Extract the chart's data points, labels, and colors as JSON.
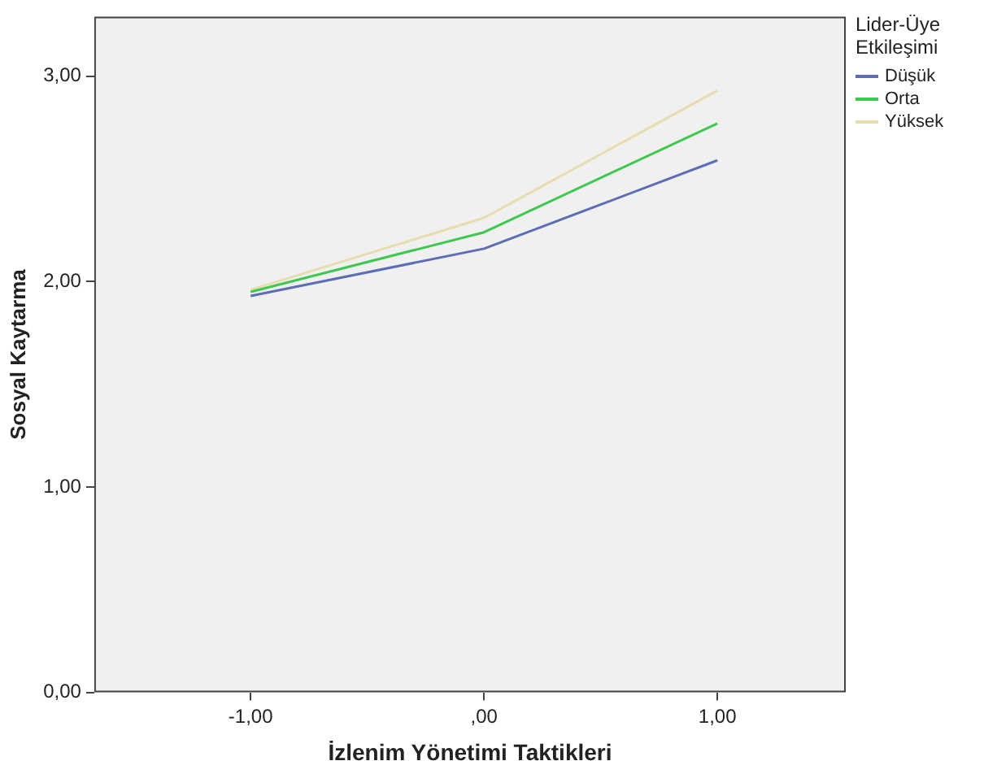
{
  "chart_data": {
    "type": "line",
    "xlabel": "İzlenim Yönetimi Taktikleri",
    "ylabel": "Sosyal Kaytarma",
    "legend_title": "Lider-Üye Etkileşimi",
    "legend": "top right",
    "grid": false,
    "marker": "none",
    "line_style": "solid",
    "x": [
      -1,
      0,
      1
    ],
    "xlim": [
      -1.67,
      1.55
    ],
    "xticks": [
      {
        "value": -1,
        "label": "-1,00"
      },
      {
        "value": 0,
        "label": ",00"
      },
      {
        "value": 1,
        "label": "1,00"
      }
    ],
    "ylim": [
      0,
      3.29
    ],
    "yticks": [
      {
        "value": 0,
        "label": "0,00"
      },
      {
        "value": 1,
        "label": "1,00"
      },
      {
        "value": 2,
        "label": "2,00"
      },
      {
        "value": 3,
        "label": "3,00"
      }
    ],
    "series": [
      {
        "name": "Düşük",
        "color": "#5d6db5",
        "values": [
          1.93,
          2.16,
          2.59
        ]
      },
      {
        "name": "Orta",
        "color": "#3ec850",
        "values": [
          1.95,
          2.24,
          2.77
        ]
      },
      {
        "name": "Yüksek",
        "color": "#e6dcae",
        "values": [
          1.96,
          2.31,
          2.93
        ]
      }
    ]
  }
}
